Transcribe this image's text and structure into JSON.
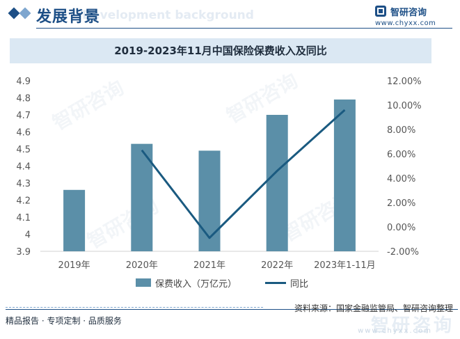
{
  "header": {
    "title": "发展背景",
    "subtitle": "Development background"
  },
  "logo": {
    "name": "智研咨询",
    "url": "www.chyxx.com"
  },
  "watermark": "智研咨询",
  "colors": {
    "bar": "#5b8fa8",
    "line": "#1a5a80",
    "accent": "#1d4f86",
    "title_band": "#dbe8f3"
  },
  "chart_data": {
    "type": "bar",
    "title": "2019-2023年11月中国保险保费收入及同比",
    "categories": [
      "2019年",
      "2020年",
      "2021年",
      "2022年",
      "2023年1-11月"
    ],
    "series": [
      {
        "name": "保费收入（万亿元）",
        "type": "bar",
        "axis": "left",
        "values": [
          4.26,
          4.53,
          4.49,
          4.7,
          4.79
        ]
      },
      {
        "name": "同比",
        "type": "line",
        "axis": "right",
        "values": [
          null,
          6.3,
          -0.9,
          4.6,
          9.6
        ]
      }
    ],
    "y_left": {
      "min": 3.9,
      "max": 4.9,
      "ticks": [
        "3.9",
        "4",
        "4.1",
        "4.2",
        "4.3",
        "4.4",
        "4.5",
        "4.6",
        "4.7",
        "4.8",
        "4.9"
      ]
    },
    "y_right": {
      "min": -2,
      "max": 12,
      "ticks": [
        "-2.00%",
        "0.00%",
        "2.00%",
        "4.00%",
        "6.00%",
        "8.00%",
        "10.00%",
        "12.00%"
      ]
    },
    "legend": {
      "bar_label": "保费收入（万亿元）",
      "line_label": "同比"
    }
  },
  "footer": {
    "source": "资料来源：国家金融监管局、智研咨询整理",
    "services": "精品报告 · 专项定制 · 品质服务",
    "brand": "智研咨询",
    "url": "www.chyxx.com"
  }
}
